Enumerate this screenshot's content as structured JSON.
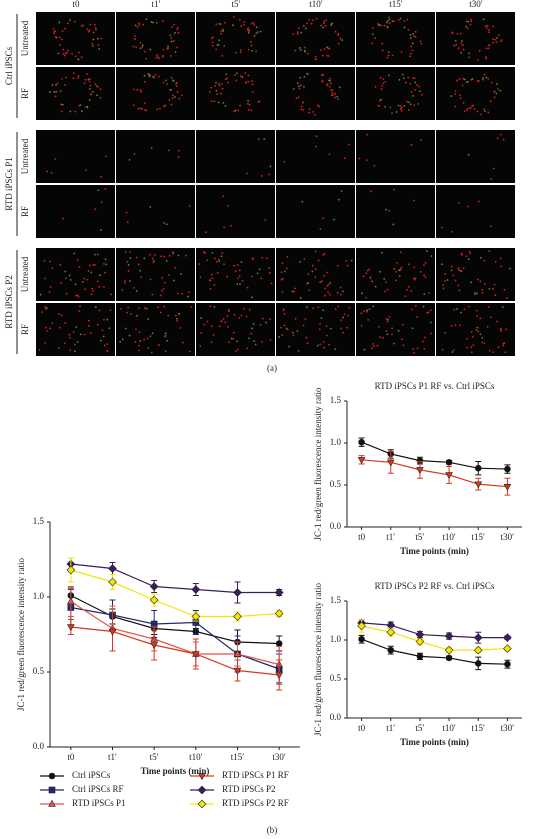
{
  "panel_a": {
    "time_labels": [
      "t0",
      "t1′",
      "t5′",
      "t10′",
      "t15′",
      "t30′"
    ],
    "groups": [
      {
        "label": "Ctrl iPSCs",
        "rows": [
          "Untreated",
          "RF"
        ]
      },
      {
        "label": "RTD iPSCs P1",
        "rows": [
          "Untreated",
          "RF"
        ]
      },
      {
        "label": "RTD iPSCs P2",
        "rows": [
          "Untreated",
          "RF"
        ]
      }
    ],
    "caption": "(a)"
  },
  "panel_b_caption": "(b)",
  "chart_data": [
    {
      "type": "line",
      "xlabel": "Time points (min)",
      "ylabel": "JC-1 red/green fluorescence intensity ratio",
      "categories": [
        "t0",
        "t1′",
        "t5′",
        "t10′",
        "t15′",
        "t30′"
      ],
      "ylim": [
        0,
        1.5
      ],
      "yticks": [
        {
          "value": 0,
          "label": "0.0"
        },
        {
          "value": 0.5,
          "label": "0.5"
        },
        {
          "value": 1,
          "label": "1.0"
        },
        {
          "value": 1.5,
          "label": "1.5"
        }
      ],
      "series": [
        {
          "name": "Ctrl iPSCs",
          "color": "#111111",
          "marker": "circle",
          "values": [
            1.01,
            0.87,
            0.79,
            0.77,
            0.7,
            0.69
          ],
          "errors": [
            0.05,
            0.05,
            0.04,
            0.02,
            0.08,
            0.05
          ]
        },
        {
          "name": "Ctrl iPSCs RF",
          "color": "#1f2a6b",
          "marker": "square",
          "values": [
            0.93,
            0.88,
            0.82,
            0.83,
            0.62,
            0.52
          ],
          "errors": [
            0.12,
            0.1,
            0.09,
            0.08,
            0.12,
            0.1
          ]
        },
        {
          "name": "RTD iPSCs P1",
          "color": "#e8504a",
          "marker": "triangle-up",
          "values": [
            0.97,
            0.79,
            0.72,
            0.62,
            0.62,
            0.55
          ],
          "errors": [
            0.1,
            0.15,
            0.08,
            0.08,
            0.08,
            0.12
          ]
        },
        {
          "name": "RTD iPSCs P1 RF",
          "color": "#d9361e",
          "marker": "triangle-down",
          "values": [
            0.8,
            0.77,
            0.68,
            0.62,
            0.51,
            0.48
          ],
          "errors": [
            0.05,
            0.13,
            0.1,
            0.1,
            0.07,
            0.1
          ]
        },
        {
          "name": "RTD iPSCs P2",
          "color": "#3b1d5e",
          "marker": "diamond",
          "values": [
            1.22,
            1.19,
            1.07,
            1.05,
            1.03,
            1.03
          ],
          "errors": [
            0.04,
            0.04,
            0.04,
            0.04,
            0.07,
            0.02
          ]
        },
        {
          "name": "RTD iPSCs P2 RF",
          "color": "#f2e600",
          "marker": "diamond",
          "values": [
            1.18,
            1.1,
            0.98,
            0.87,
            0.87,
            0.89
          ],
          "errors": [
            0.08,
            0.05,
            0.04,
            0.03,
            0.03,
            0.02
          ]
        }
      ]
    },
    {
      "type": "line",
      "title": "RTD iPSCs P1 RF vs. Ctrl iPSCs",
      "xlabel": "Time points (min)",
      "ylabel": "JC-1 red/green fluorescence intensity ratio",
      "categories": [
        "t0",
        "t1′",
        "t5′",
        "t10′",
        "t15′",
        "t30′"
      ],
      "ylim": [
        0,
        1.5
      ],
      "yticks": [
        {
          "value": 0,
          "label": "0.0"
        },
        {
          "value": 0.5,
          "label": "0.5"
        },
        {
          "value": 1,
          "label": "1.0"
        },
        {
          "value": 1.5,
          "label": "1.5"
        }
      ],
      "series": [
        {
          "color": "#111111",
          "marker": "circle",
          "values": [
            1.01,
            0.87,
            0.79,
            0.77,
            0.7,
            0.69
          ],
          "errors": [
            0.05,
            0.05,
            0.04,
            0.02,
            0.08,
            0.05
          ]
        },
        {
          "color": "#d9361e",
          "marker": "triangle-down",
          "values": [
            0.8,
            0.77,
            0.68,
            0.62,
            0.51,
            0.48
          ],
          "errors": [
            0.05,
            0.13,
            0.1,
            0.1,
            0.07,
            0.1
          ]
        }
      ]
    },
    {
      "type": "line",
      "title": "RTD iPSCs P2 RF vs. Ctrl iPSCs",
      "xlabel": "Time points (min)",
      "ylabel": "JC-1 red/green fluorescence intensity ratio",
      "categories": [
        "t0",
        "t1′",
        "t5′",
        "t10′",
        "t15′",
        "t30′"
      ],
      "ylim": [
        0,
        1.5
      ],
      "yticks": [
        {
          "value": 0,
          "label": "0.0"
        },
        {
          "value": 0.5,
          "label": "0.5"
        },
        {
          "value": 1,
          "label": "1.0"
        },
        {
          "value": 1.5,
          "label": "1.5"
        }
      ],
      "series": [
        {
          "color": "#111111",
          "marker": "circle",
          "values": [
            1.01,
            0.87,
            0.79,
            0.77,
            0.7,
            0.69
          ],
          "errors": [
            0.05,
            0.05,
            0.04,
            0.02,
            0.08,
            0.05
          ]
        },
        {
          "color": "#3b1d5e",
          "marker": "diamond",
          "values": [
            1.22,
            1.19,
            1.07,
            1.05,
            1.03,
            1.03
          ],
          "errors": [
            0.04,
            0.04,
            0.04,
            0.04,
            0.07,
            0.02
          ]
        },
        {
          "color": "#f2e600",
          "marker": "diamond",
          "values": [
            1.18,
            1.1,
            0.98,
            0.87,
            0.87,
            0.89
          ],
          "errors": [
            0.08,
            0.05,
            0.04,
            0.03,
            0.03,
            0.02
          ]
        }
      ]
    }
  ]
}
